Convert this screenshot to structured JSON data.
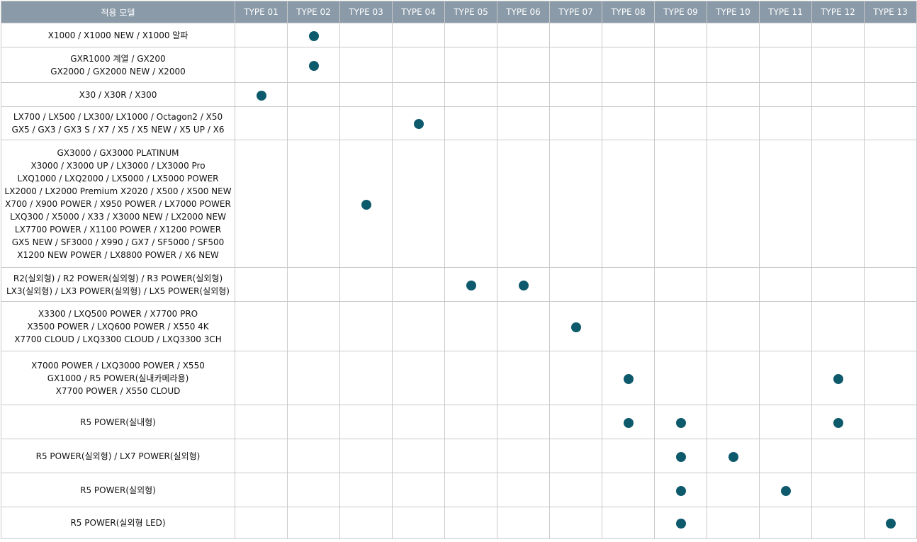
{
  "accent_color": "#0d5a6c",
  "header_color": "#8a9aa8",
  "header": {
    "model_label": "적용 모델",
    "types": [
      "TYPE 01",
      "TYPE 02",
      "TYPE 03",
      "TYPE 04",
      "TYPE 05",
      "TYPE 06",
      "TYPE 07",
      "TYPE 08",
      "TYPE 09",
      "TYPE 10",
      "TYPE 11",
      "TYPE 12",
      "TYPE 13"
    ]
  },
  "rows": [
    {
      "models": "X1000 / X1000 NEW / X1000 알파",
      "types": [
        2
      ]
    },
    {
      "models": "GXR1000 계열 / GX200\nGX2000 / GX2000 NEW / X2000",
      "types": [
        2
      ]
    },
    {
      "models": "X30 / X30R / X300",
      "types": [
        1
      ]
    },
    {
      "models": "LX700 / LX500 / LX300/ LX1000 / Octagon2 / X50\nGX5 / GX3 / GX3 S / X7 / X5 / X5 NEW / X5 UP / X6",
      "types": [
        4
      ]
    },
    {
      "models": "GX3000 / GX3000 PLATINUM\nX3000 / X3000 UP / LX3000 / LX3000 Pro\nLXQ1000 / LXQ2000 / LX5000 / LX5000 POWER\nLX2000 / LX2000 Premium X2020 / X500 / X500 NEW\nX700 / X900 POWER / X950 POWER / LX7000 POWER\nLXQ300 / X5000 / X33 / X3000 NEW / LX2000 NEW\nLX7700 POWER / X1100 POWER / X1200 POWER\nGX5 NEW / SF3000 / X990 / GX7 / SF5000 / SF500\nX1200 NEW POWER / LX8800 POWER / X6 NEW",
      "types": [
        3
      ]
    },
    {
      "models": "R2(실외형) / R2 POWER(실외형) / R3 POWER(실외형)\nLX3(실외형) / LX3 POWER(실외형) / LX5 POWER(실외형)",
      "types": [
        5,
        6
      ]
    },
    {
      "models": "X3300 / LXQ500 POWER / X7700 PRO\nX3500 POWER / LXQ600 POWER / X550 4K\nX7700 CLOUD / LXQ3300 CLOUD / LXQ3300 3CH",
      "types": [
        7
      ]
    },
    {
      "models": "X7000 POWER / LXQ3000 POWER / X550\nGX1000 / R5 POWER(실내카메라용)\nX7700 POWER / X550 CLOUD",
      "types": [
        8,
        12
      ]
    },
    {
      "models": "R5 POWER(실내형)",
      "types": [
        8,
        9,
        12
      ]
    },
    {
      "models": "R5 POWER(실외형) / LX7 POWER(실외형)",
      "types": [
        9,
        10
      ]
    },
    {
      "models": "R5 POWER(실외형)",
      "types": [
        9,
        11
      ]
    },
    {
      "models": "R5 POWER(실외형 LED)",
      "types": [
        9,
        13
      ]
    }
  ]
}
